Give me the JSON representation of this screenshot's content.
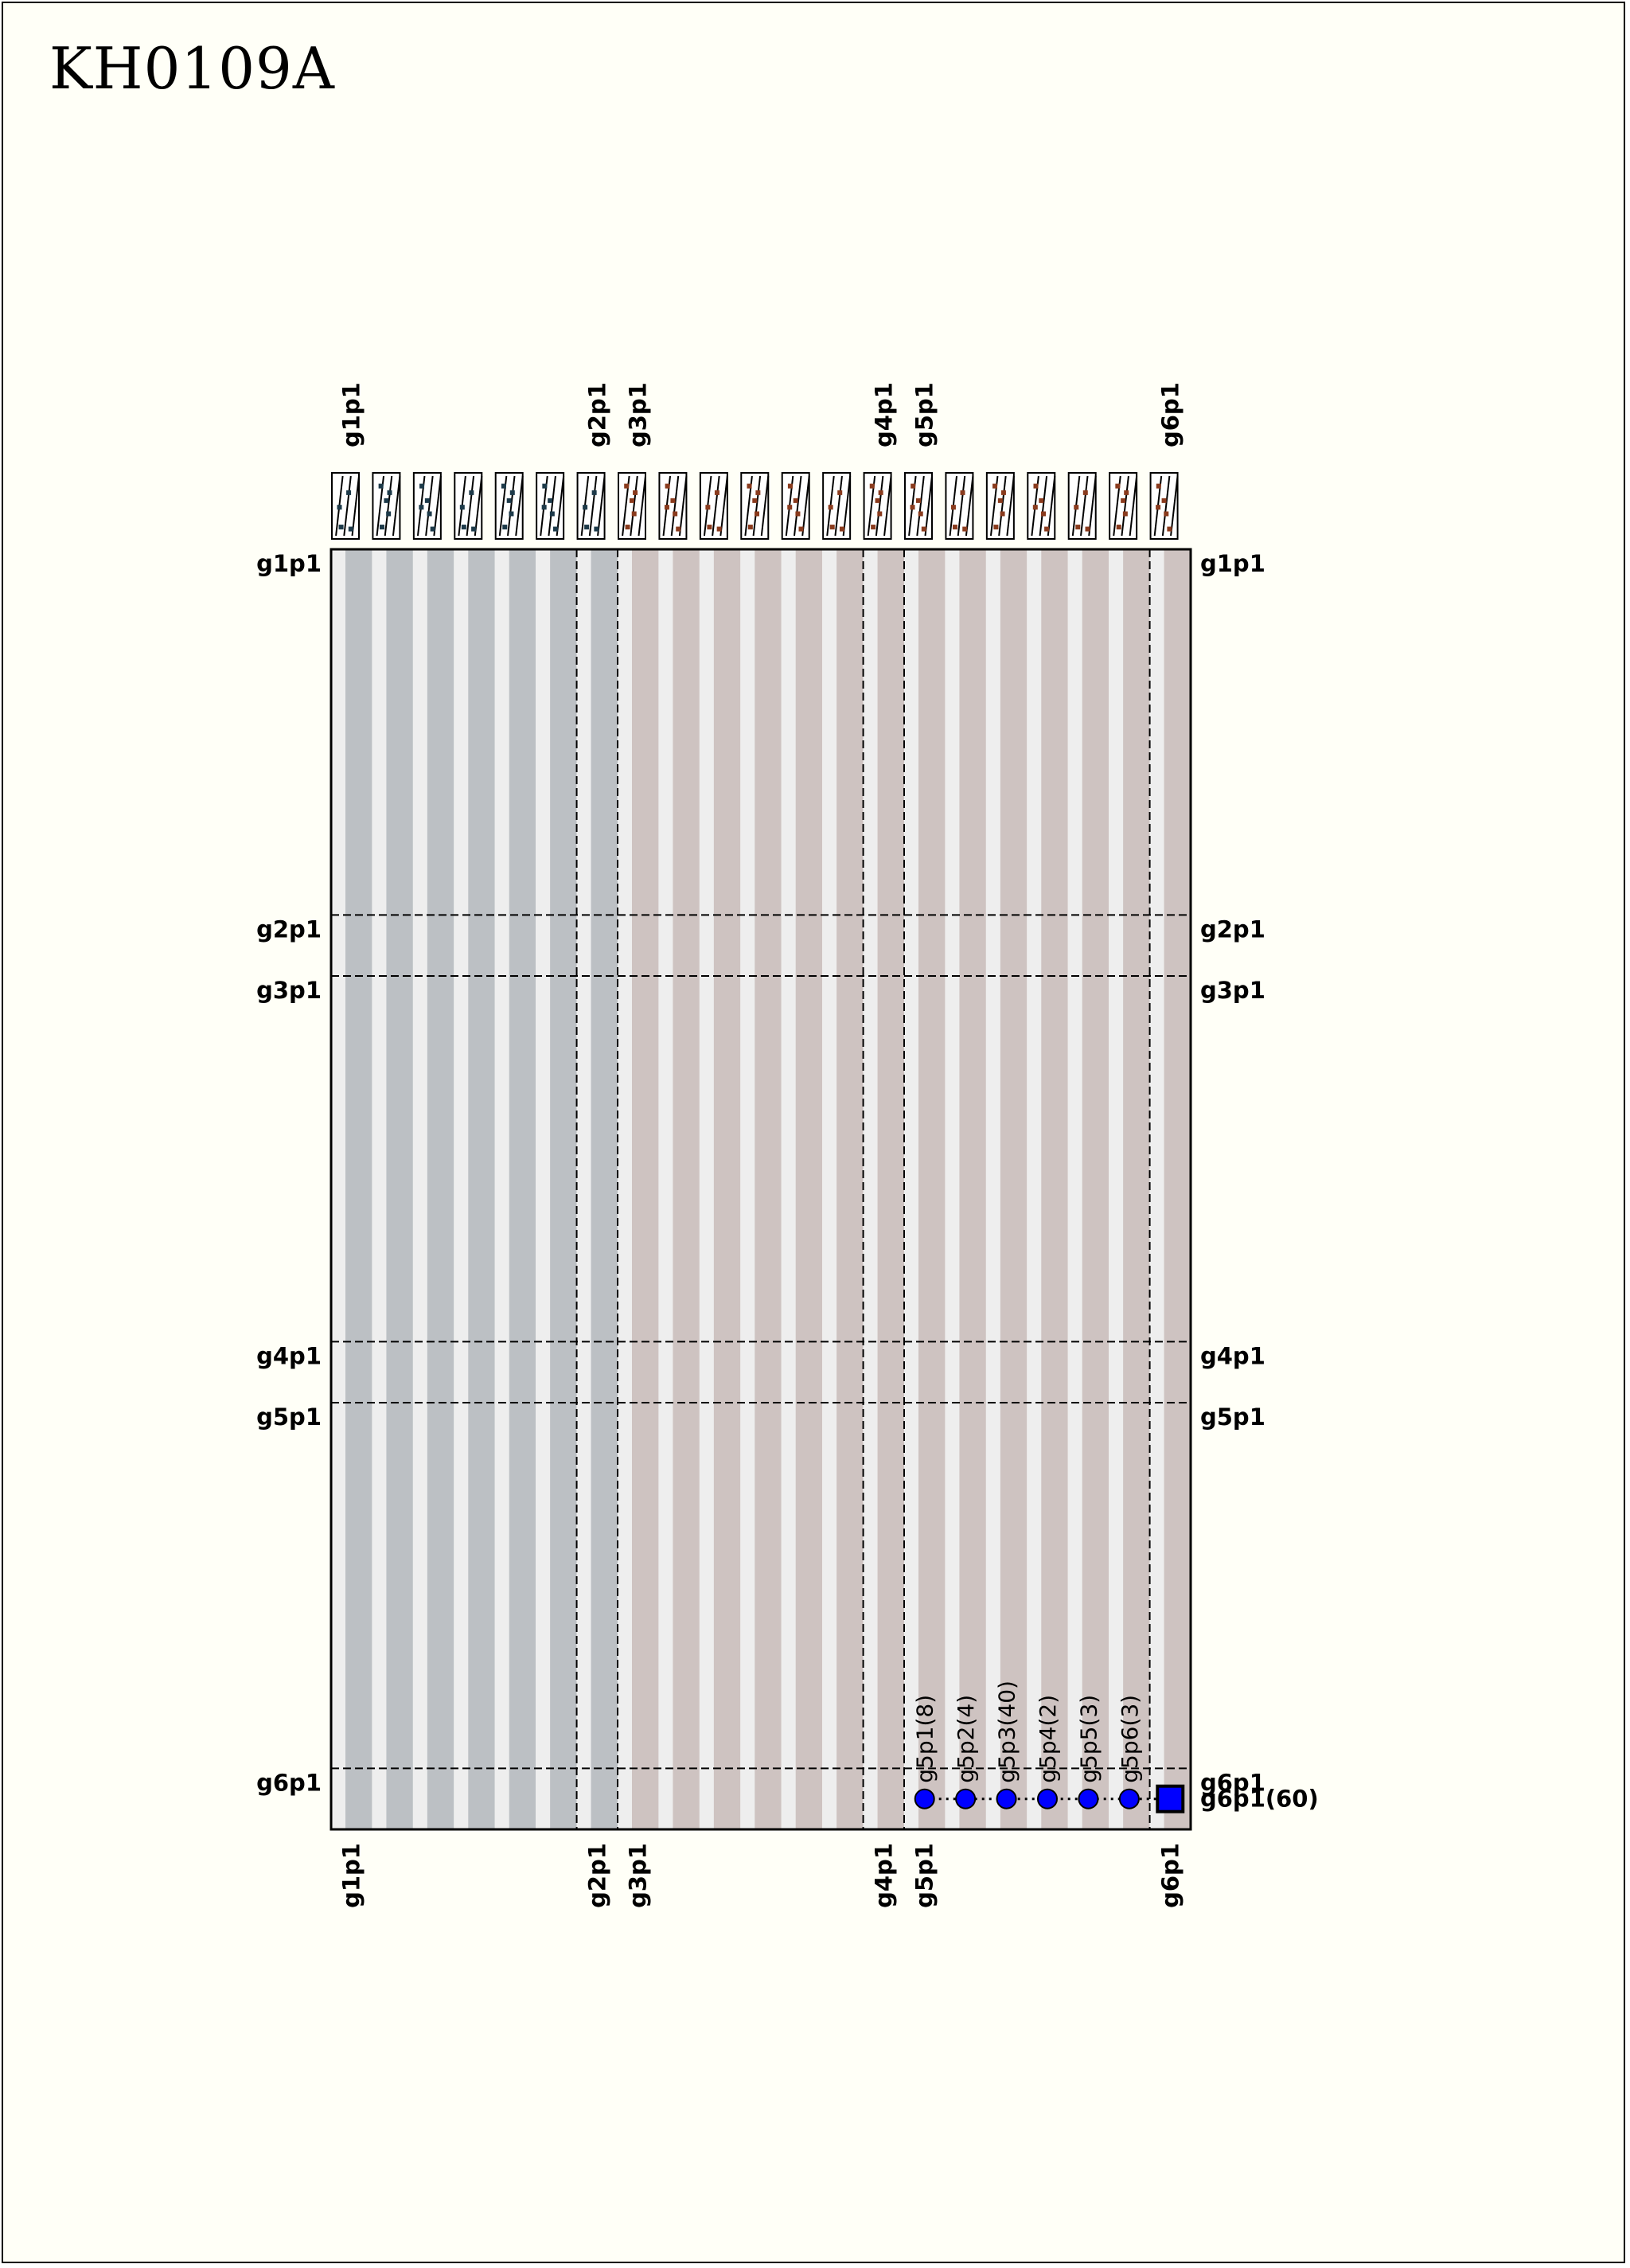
{
  "title": "KH0109A",
  "colors": {
    "page": "#fffff7",
    "group_a_stripe": "#bcc0c4",
    "group_b_stripe": "#cec3c1",
    "light_stripe": "#eeeeee",
    "marker": "#0000ff",
    "pattern_a": "#1d3a4a",
    "pattern_b": "#8a3b1e"
  },
  "genomes": [
    "g1p1",
    "g2p1",
    "g3p1",
    "g4p1",
    "g5p1",
    "g6p1"
  ],
  "segments": [
    {
      "genome": "g1p1",
      "start": 0,
      "span": 6,
      "tone": "a"
    },
    {
      "genome": "g2p1",
      "start": 6,
      "span": 1,
      "tone": "a"
    },
    {
      "genome": "g3p1",
      "start": 7,
      "span": 6,
      "tone": "b"
    },
    {
      "genome": "g4p1",
      "start": 13,
      "span": 1,
      "tone": "b"
    },
    {
      "genome": "g5p1",
      "start": 14,
      "span": 6,
      "tone": "b"
    },
    {
      "genome": "g6p1",
      "start": 20,
      "span": 1,
      "tone": "b"
    }
  ],
  "row_segments": [
    {
      "genome": "g1p1",
      "start": 0,
      "span": 6
    },
    {
      "genome": "g2p1",
      "start": 6,
      "span": 1
    },
    {
      "genome": "g3p1",
      "start": 7,
      "span": 6
    },
    {
      "genome": "g4p1",
      "start": 13,
      "span": 1
    },
    {
      "genome": "g5p1",
      "start": 14,
      "span": 6
    },
    {
      "genome": "g6p1",
      "start": 20,
      "span": 1
    }
  ],
  "column_count": 21,
  "row_count": 21,
  "markers": [
    {
      "label": "g5p1(8)",
      "column": 14,
      "shape": "circle"
    },
    {
      "label": "g5p2(4)",
      "column": 15,
      "shape": "circle"
    },
    {
      "label": "g5p3(40)",
      "column": 16,
      "shape": "circle"
    },
    {
      "label": "g5p4(2)",
      "column": 17,
      "shape": "circle"
    },
    {
      "label": "g5p5(3)",
      "column": 18,
      "shape": "circle"
    },
    {
      "label": "g5p6(3)",
      "column": 19,
      "shape": "circle"
    },
    {
      "label": "g6p1(60)",
      "column": 20,
      "shape": "square"
    }
  ]
}
